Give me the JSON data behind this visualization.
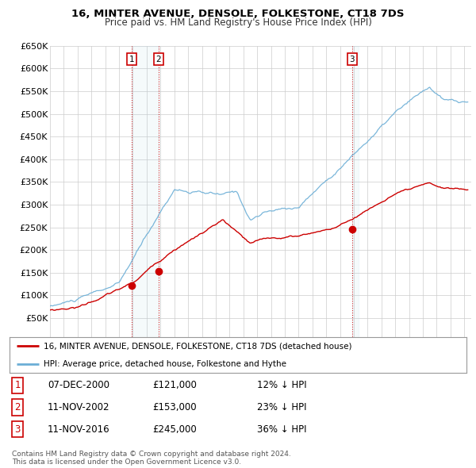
{
  "title": "16, MINTER AVENUE, DENSOLE, FOLKESTONE, CT18 7DS",
  "subtitle": "Price paid vs. HM Land Registry's House Price Index (HPI)",
  "ylim": [
    0,
    650000
  ],
  "yticks": [
    0,
    50000,
    100000,
    150000,
    200000,
    250000,
    300000,
    350000,
    400000,
    450000,
    500000,
    550000,
    600000,
    650000
  ],
  "xlim_start": 1995.0,
  "xlim_end": 2025.5,
  "bg_color": "#ffffff",
  "grid_color": "#cccccc",
  "hpi_color": "#6baed6",
  "price_color": "#cc0000",
  "transactions": [
    {
      "label": "1",
      "date_str": "07-DEC-2000",
      "date_x": 2000.93,
      "price": 121000,
      "note": "12% ↓ HPI"
    },
    {
      "label": "2",
      "date_str": "11-NOV-2002",
      "date_x": 2002.87,
      "price": 153000,
      "note": "23% ↓ HPI"
    },
    {
      "label": "3",
      "date_str": "11-NOV-2016",
      "date_x": 2016.87,
      "price": 245000,
      "note": "36% ↓ HPI"
    }
  ],
  "legend_line1": "16, MINTER AVENUE, DENSOLE, FOLKESTONE, CT18 7DS (detached house)",
  "legend_line2": "HPI: Average price, detached house, Folkestone and Hythe",
  "footer1": "Contains HM Land Registry data © Crown copyright and database right 2024.",
  "footer2": "This data is licensed under the Open Government Licence v3.0."
}
